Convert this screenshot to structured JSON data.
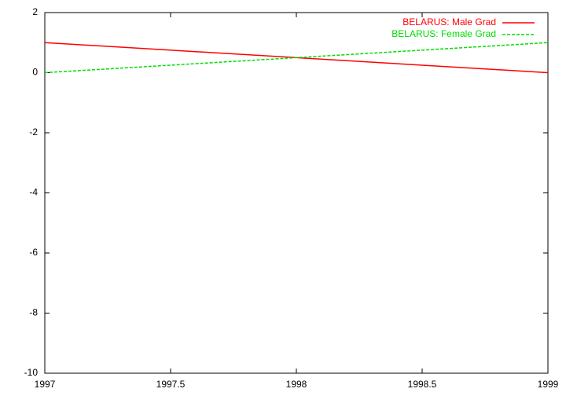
{
  "chart_data": {
    "type": "line",
    "x": [
      1997,
      1999
    ],
    "series": [
      {
        "name": "BELARUS: Male Grad",
        "color": "#ff0000",
        "dash": false,
        "values": [
          1,
          0
        ]
      },
      {
        "name": "BELARUS: Female Grad",
        "color": "#00dd00",
        "dash": true,
        "values": [
          0,
          1
        ]
      }
    ],
    "xlim": [
      1997,
      1999
    ],
    "xticks": [
      1997,
      1997.5,
      1998,
      1998.5,
      1999
    ],
    "ylim": [
      -10,
      2
    ],
    "yticks": [
      -10,
      -8,
      -6,
      -4,
      -2,
      0,
      2
    ],
    "legend": "top-right",
    "grid": false
  }
}
